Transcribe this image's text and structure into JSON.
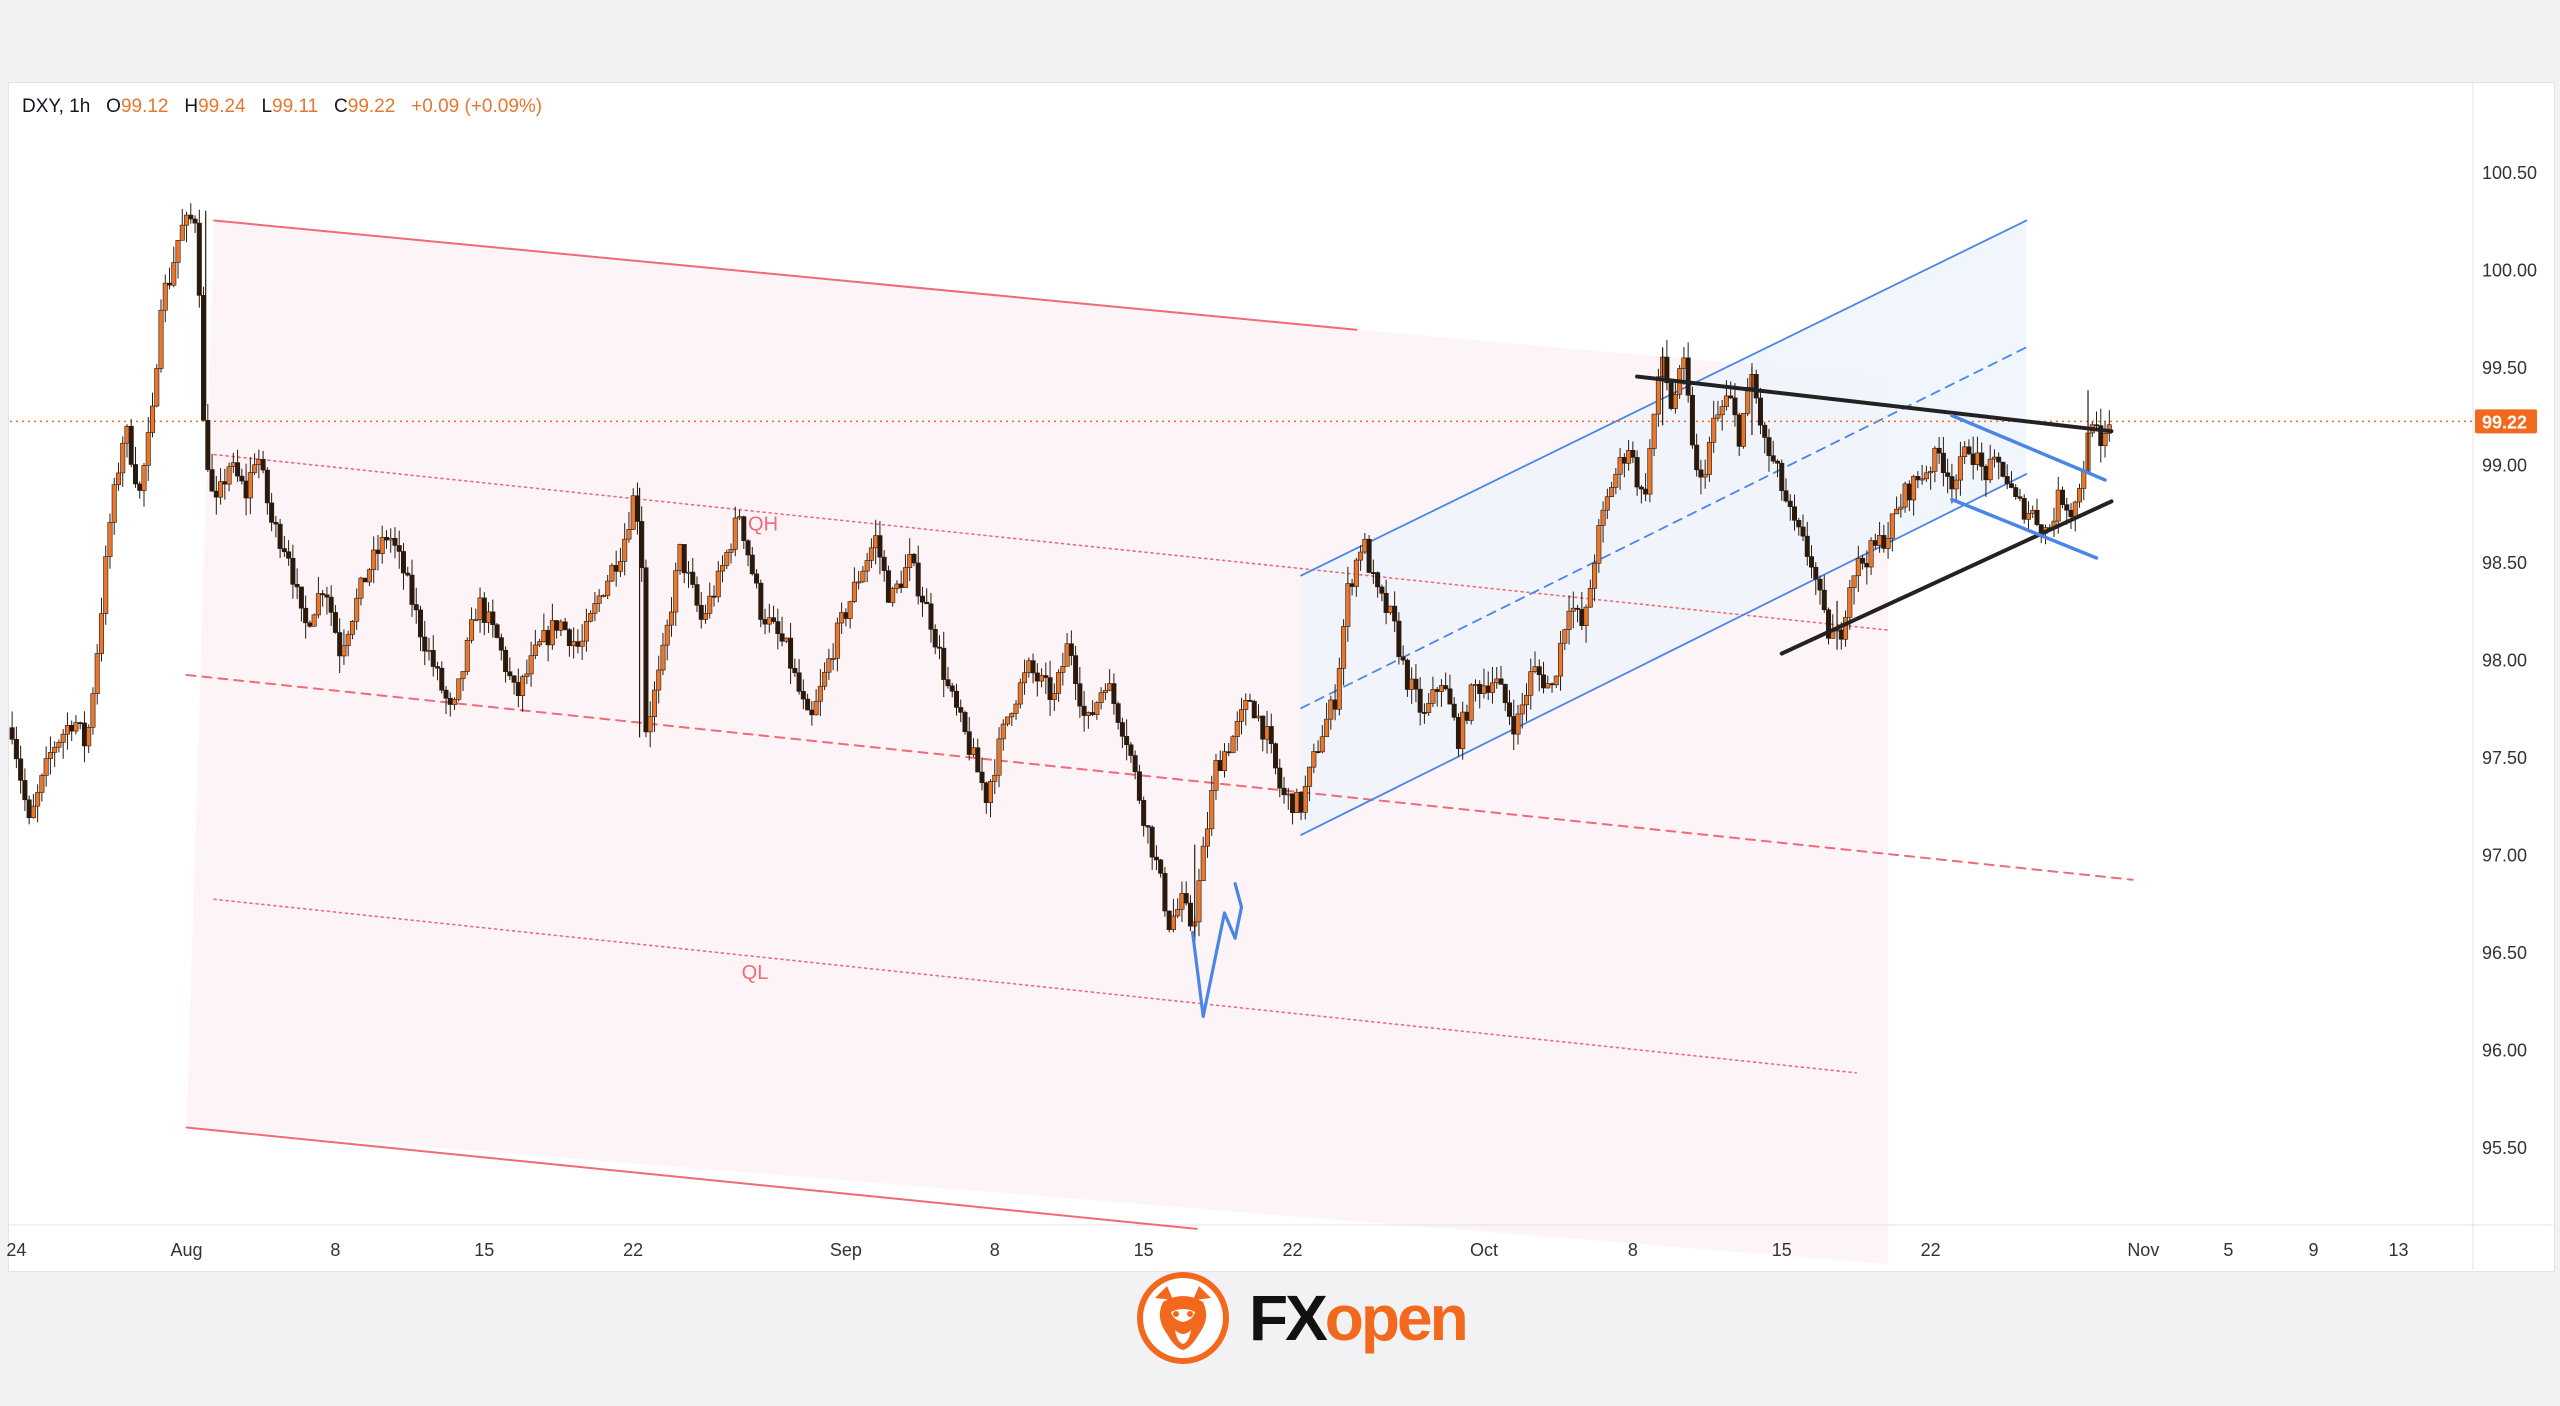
{
  "legend": {
    "symbol": "DXY, 1h",
    "open_label": "O",
    "open": "99.12",
    "high_label": "H",
    "high": "99.24",
    "low_label": "L",
    "low": "99.11",
    "close_label": "C",
    "close": "99.22",
    "change": "+0.09 (+0.09%)"
  },
  "brand": {
    "logo_icon": "fxopen-bull-logo-icon",
    "name_part1": "FX",
    "name_part2": "open"
  },
  "colors": {
    "candle": "#e8772e",
    "candle_dark": "#2a1a0e",
    "red_channel": "#f06a78",
    "blue_channel": "#4a86e8",
    "support_black": "#222222",
    "price_line": "#f2691e"
  },
  "chart_data": {
    "type": "candlestick",
    "symbol": "DXY",
    "timeframe": "1h",
    "ylim": [
      95.1,
      100.95
    ],
    "y_ticks": [
      95.5,
      96.0,
      96.5,
      97.0,
      97.5,
      98.0,
      98.5,
      99.0,
      99.5,
      100.0,
      100.5
    ],
    "x_tick_labels": [
      {
        "label": "24",
        "day": -8
      },
      {
        "label": "Aug",
        "day": 0
      },
      {
        "label": "8",
        "day": 7
      },
      {
        "label": "15",
        "day": 14
      },
      {
        "label": "22",
        "day": 21
      },
      {
        "label": "Sep",
        "day": 31
      },
      {
        "label": "8",
        "day": 38
      },
      {
        "label": "15",
        "day": 45
      },
      {
        "label": "22",
        "day": 52
      },
      {
        "label": "Oct",
        "day": 61
      },
      {
        "label": "8",
        "day": 68
      },
      {
        "label": "15",
        "day": 75
      },
      {
        "label": "22",
        "day": 82
      },
      {
        "label": "Nov",
        "day": 92
      },
      {
        "label": "5",
        "day": 96
      },
      {
        "label": "9",
        "day": 100
      },
      {
        "label": "13",
        "day": 104
      }
    ],
    "xlim_days": [
      -8.3,
      107.5
    ],
    "price_anchors": [
      [
        -8.2,
        97.65
      ],
      [
        -7.4,
        97.15
      ],
      [
        -6.3,
        97.55
      ],
      [
        -5.3,
        97.7
      ],
      [
        -4.7,
        97.55
      ],
      [
        -4.2,
        98.05
      ],
      [
        -3.6,
        98.7
      ],
      [
        -2.9,
        99.2
      ],
      [
        -2.2,
        98.85
      ],
      [
        -1.6,
        99.25
      ],
      [
        -1.2,
        99.85
      ],
      [
        -0.8,
        99.95
      ],
      [
        -0.3,
        100.2
      ],
      [
        0.5,
        100.28
      ],
      [
        0.8,
        99.2
      ],
      [
        1.3,
        98.75
      ],
      [
        2.0,
        99.0
      ],
      [
        2.8,
        98.85
      ],
      [
        3.3,
        99.08
      ],
      [
        4.0,
        98.7
      ],
      [
        4.8,
        98.55
      ],
      [
        5.5,
        98.15
      ],
      [
        6.5,
        98.4
      ],
      [
        7.2,
        98.05
      ],
      [
        8.5,
        98.45
      ],
      [
        9.5,
        98.65
      ],
      [
        10.2,
        98.45
      ],
      [
        11.0,
        98.15
      ],
      [
        12.5,
        97.7
      ],
      [
        13.7,
        98.3
      ],
      [
        14.6,
        98.1
      ],
      [
        15.5,
        97.8
      ],
      [
        16.5,
        98.05
      ],
      [
        17.5,
        98.2
      ],
      [
        18.5,
        98.05
      ],
      [
        19.5,
        98.35
      ],
      [
        20.5,
        98.58
      ],
      [
        21.1,
        98.87
      ],
      [
        21.4,
        98.5
      ],
      [
        21.6,
        97.65
      ],
      [
        22.3,
        97.95
      ],
      [
        23.2,
        98.55
      ],
      [
        24.2,
        98.2
      ],
      [
        25.0,
        98.4
      ],
      [
        26.0,
        98.75
      ],
      [
        27.0,
        98.25
      ],
      [
        28.2,
        98.05
      ],
      [
        29.3,
        97.65
      ],
      [
        30.5,
        98.1
      ],
      [
        31.7,
        98.45
      ],
      [
        32.4,
        98.62
      ],
      [
        33.1,
        98.3
      ],
      [
        34.0,
        98.5
      ],
      [
        35.0,
        98.2
      ],
      [
        35.8,
        97.85
      ],
      [
        36.8,
        97.55
      ],
      [
        37.6,
        97.3
      ],
      [
        38.7,
        97.75
      ],
      [
        39.6,
        97.95
      ],
      [
        40.8,
        97.8
      ],
      [
        41.5,
        98.1
      ],
      [
        42.3,
        97.65
      ],
      [
        43.2,
        97.9
      ],
      [
        44.2,
        97.6
      ],
      [
        44.9,
        97.25
      ],
      [
        45.6,
        96.95
      ],
      [
        46.2,
        96.65
      ],
      [
        46.8,
        96.75
      ],
      [
        47.3,
        96.62
      ],
      [
        47.8,
        97.0
      ],
      [
        48.4,
        97.45
      ],
      [
        49.2,
        97.6
      ],
      [
        50.0,
        97.8
      ],
      [
        50.8,
        97.6
      ],
      [
        51.5,
        97.3
      ],
      [
        52.4,
        97.25
      ],
      [
        53.3,
        97.6
      ],
      [
        54.0,
        97.8
      ],
      [
        54.6,
        98.35
      ],
      [
        55.3,
        98.62
      ],
      [
        55.9,
        98.35
      ],
      [
        56.7,
        98.2
      ],
      [
        57.3,
        97.92
      ],
      [
        58.2,
        97.7
      ],
      [
        59.0,
        97.9
      ],
      [
        59.8,
        97.6
      ],
      [
        60.5,
        97.85
      ],
      [
        61.5,
        97.9
      ],
      [
        62.5,
        97.65
      ],
      [
        63.3,
        97.95
      ],
      [
        64.2,
        97.85
      ],
      [
        65.0,
        98.3
      ],
      [
        65.7,
        98.15
      ],
      [
        66.3,
        98.6
      ],
      [
        67.0,
        98.9
      ],
      [
        67.8,
        99.1
      ],
      [
        68.5,
        98.8
      ],
      [
        69.0,
        99.25
      ],
      [
        69.4,
        99.55
      ],
      [
        69.8,
        99.3
      ],
      [
        70.4,
        99.5
      ],
      [
        71.1,
        98.85
      ],
      [
        71.8,
        99.2
      ],
      [
        72.5,
        99.35
      ],
      [
        73.0,
        99.15
      ],
      [
        73.6,
        99.45
      ],
      [
        74.2,
        99.1
      ],
      [
        74.8,
        98.95
      ],
      [
        75.5,
        98.7
      ],
      [
        76.4,
        98.5
      ],
      [
        77.1,
        98.15
      ],
      [
        77.7,
        98.1
      ],
      [
        78.3,
        98.45
      ],
      [
        79.2,
        98.55
      ],
      [
        80.0,
        98.65
      ],
      [
        80.8,
        98.85
      ],
      [
        81.6,
        98.95
      ],
      [
        82.4,
        99.05
      ],
      [
        83.1,
        98.9
      ],
      [
        83.8,
        99.1
      ],
      [
        84.5,
        98.95
      ],
      [
        85.3,
        99.0
      ],
      [
        86.0,
        98.8
      ],
      [
        86.8,
        98.75
      ],
      [
        87.5,
        98.65
      ],
      [
        88.1,
        98.85
      ],
      [
        88.7,
        98.75
      ],
      [
        89.2,
        99.0
      ],
      [
        89.6,
        99.25
      ],
      [
        90.0,
        99.05
      ],
      [
        90.5,
        99.22
      ]
    ],
    "annotations": [
      {
        "text": "QH",
        "day": 26.4,
        "price": 98.66
      },
      {
        "text": "QL",
        "day": 26.1,
        "price": 96.36
      }
    ],
    "current_price_label": "99.22",
    "trendlines": {
      "red_channel_top": {
        "from": [
          1.3,
          100.25
        ],
        "to": [
          55.0,
          99.69
        ]
      },
      "red_channel_bottom": {
        "from": [
          0.0,
          95.6
        ],
        "to": [
          47.5,
          95.08
        ]
      },
      "red_mid_dashed": {
        "from": [
          0.0,
          97.92
        ],
        "to": [
          91.5,
          96.87
        ]
      },
      "QH_dotted": {
        "from": [
          1.3,
          99.05
        ],
        "to": [
          80.0,
          98.15
        ]
      },
      "QL_dotted": {
        "from": [
          1.3,
          96.77
        ],
        "to": [
          78.5,
          95.88
        ]
      },
      "blue_channel_top": {
        "from": [
          52.4,
          98.43
        ],
        "to": [
          86.5,
          100.25
        ]
      },
      "blue_channel_mid": {
        "from": [
          52.4,
          97.75
        ],
        "to": [
          86.5,
          99.6
        ]
      },
      "blue_channel_bottom": {
        "from": [
          52.4,
          97.1
        ],
        "to": [
          86.5,
          98.95
        ]
      },
      "black_resistance": {
        "from": [
          68.2,
          99.45
        ],
        "to": [
          90.5,
          99.17
        ]
      },
      "black_support": {
        "from": [
          75.0,
          98.03
        ],
        "to": [
          90.5,
          98.81
        ]
      },
      "flag_top": {
        "from": [
          83.0,
          99.25
        ],
        "to": [
          90.2,
          98.92
        ]
      },
      "flag_bottom": {
        "from": [
          83.0,
          98.82
        ],
        "to": [
          89.8,
          98.52
        ]
      },
      "bounce_arrow": [
        [
          47.8,
          96.17
        ],
        [
          48.8,
          96.7
        ],
        [
          49.3,
          96.57
        ],
        [
          49.6,
          96.73
        ],
        [
          49.3,
          96.85
        ]
      ]
    }
  }
}
